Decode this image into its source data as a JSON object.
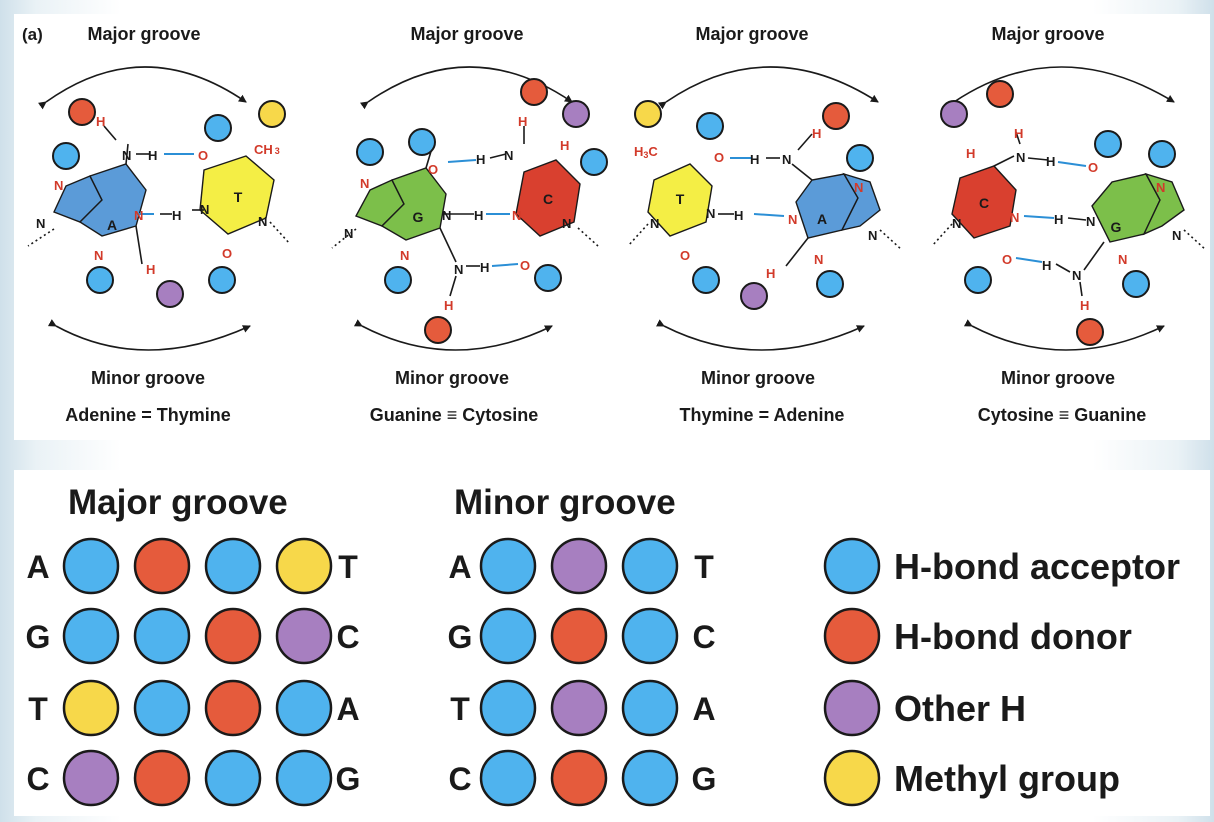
{
  "colors": {
    "acceptor": "#4fb3ee",
    "donor": "#e55b3c",
    "other_h": "#a77fc0",
    "methyl": "#f7d84a",
    "adenine": "#5b9bd8",
    "thymine": "#f4ee45",
    "guanine": "#7cbf4a",
    "cytosine": "#d9402f",
    "atom_red": "#d23a2a"
  },
  "panel_label": "(a)",
  "pairs": [
    {
      "major_label": "Major groove",
      "minor_label": "Minor groove",
      "caption_left": "Adenine",
      "bond_symbol": "=",
      "caption_right": "Thymine",
      "left_base": "A",
      "right_base": "T"
    },
    {
      "major_label": "Major groove",
      "minor_label": "Minor groove",
      "caption_left": "Guanine",
      "bond_symbol": "≡",
      "caption_right": "Cytosine",
      "left_base": "G",
      "right_base": "C"
    },
    {
      "major_label": "Major groove",
      "minor_label": "Minor groove",
      "caption_left": "Thymine",
      "bond_symbol": "=",
      "caption_right": "Adenine",
      "left_base": "T",
      "right_base": "A"
    },
    {
      "major_label": "Major groove",
      "minor_label": "Minor groove",
      "caption_left": "Cytosine",
      "bond_symbol": "≡",
      "caption_right": "Guanine",
      "left_base": "C",
      "right_base": "G"
    }
  ],
  "atoms": {
    "N": "N",
    "H": "H",
    "O": "O",
    "CH3": "CH",
    "CH3_sub": "3",
    "H3C": "H",
    "H3C_sub": "3",
    "H3C_c": "C"
  },
  "codes": {
    "major_title": "Major groove",
    "minor_title": "Minor groove",
    "major_rows": [
      {
        "left": "A",
        "right": "T",
        "dots": [
          "acceptor",
          "donor",
          "acceptor",
          "methyl"
        ]
      },
      {
        "left": "G",
        "right": "C",
        "dots": [
          "acceptor",
          "acceptor",
          "donor",
          "other_h"
        ]
      },
      {
        "left": "T",
        "right": "A",
        "dots": [
          "methyl",
          "acceptor",
          "donor",
          "acceptor"
        ]
      },
      {
        "left": "C",
        "right": "G",
        "dots": [
          "other_h",
          "donor",
          "acceptor",
          "acceptor"
        ]
      }
    ],
    "minor_rows": [
      {
        "left": "A",
        "right": "T",
        "dots": [
          "acceptor",
          "other_h",
          "acceptor"
        ]
      },
      {
        "left": "G",
        "right": "C",
        "dots": [
          "acceptor",
          "donor",
          "acceptor"
        ]
      },
      {
        "left": "T",
        "right": "A",
        "dots": [
          "acceptor",
          "other_h",
          "acceptor"
        ]
      },
      {
        "left": "C",
        "right": "G",
        "dots": [
          "acceptor",
          "donor",
          "acceptor"
        ]
      }
    ]
  },
  "legend": [
    {
      "kind": "acceptor",
      "label": "H-bond acceptor"
    },
    {
      "kind": "donor",
      "label": "H-bond donor"
    },
    {
      "kind": "other_h",
      "label": "Other H"
    },
    {
      "kind": "methyl",
      "label": "Methyl group"
    }
  ]
}
